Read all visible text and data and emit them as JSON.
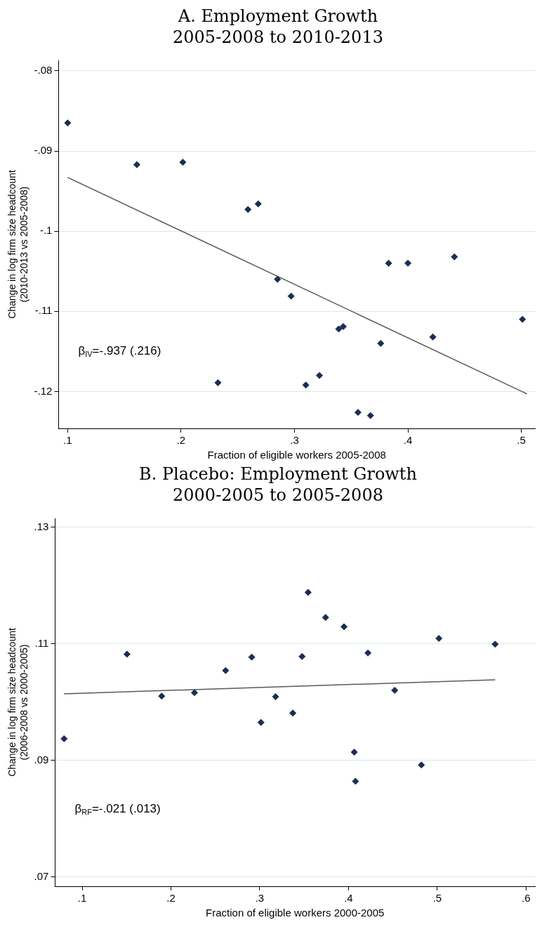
{
  "chart_data": [
    {
      "type": "scatter",
      "title": "A. Employment Growth",
      "subtitle": "2005-2008 to 2010-2013",
      "xlabel": "Fraction of eligible workers 2005-2008",
      "ylabel": "Change in log firm size headcount\n(2010-2013 vs 2005-2008)",
      "annotations": [
        "β$_{IV}$=-.937 (.216)"
      ],
      "grid": "y",
      "legend": false,
      "xlim": [
        0.092,
        0.512
      ],
      "ylim": [
        -0.1246,
        -0.0787
      ],
      "xticks": [
        {
          "value": 0.1,
          "label": ".1"
        },
        {
          "value": 0.2,
          "label": ".2"
        },
        {
          "value": 0.3,
          "label": ".3"
        },
        {
          "value": 0.4,
          "label": ".4"
        },
        {
          "value": 0.5,
          "label": ".5"
        }
      ],
      "yticks": [
        {
          "value": -0.12,
          "label": "-.12"
        },
        {
          "value": -0.11,
          "label": "-.11"
        },
        {
          "value": -0.1,
          "label": "-.1"
        },
        {
          "value": -0.09,
          "label": "-.09"
        },
        {
          "value": -0.08,
          "label": "-.08"
        }
      ],
      "series": [
        {
          "marker": "diamond",
          "color": "#1c2d55",
          "x": [
            0.1,
            0.161,
            0.2015,
            0.2325,
            0.259,
            0.268,
            0.285,
            0.297,
            0.31,
            0.322,
            0.339,
            0.343,
            0.356,
            0.367,
            0.376,
            0.383,
            0.4,
            0.422,
            0.441,
            0.501
          ],
          "values": [
            -0.0865,
            -0.0917,
            -0.0914,
            -0.1189,
            -0.0973,
            -0.0966,
            -0.106,
            -0.1081,
            -0.1192,
            -0.118,
            -0.1122,
            -0.1119,
            -0.1226,
            -0.123,
            -0.114,
            -0.104,
            -0.104,
            -0.1132,
            -0.1032,
            -0.111
          ]
        },
        {
          "type": "line",
          "marker": "none",
          "color": "#5a5a5a",
          "line_style": "solid",
          "x": [
            0.1,
            0.505
          ],
          "values": [
            -0.0933,
            -0.1203
          ]
        }
      ]
    },
    {
      "type": "scatter",
      "title": "B. Placebo: Employment Growth",
      "subtitle": "2000-2005 to 2005-2008",
      "xlabel": "Fraction of eligible workers 2000-2005",
      "ylabel": "Change in log firm size headcount\n(2006-2008 vs 2000-2005)",
      "annotations": [
        "β$_{RF}$=-.021 (.013)"
      ],
      "grid": "y",
      "legend": false,
      "xlim": [
        0.0695,
        0.61
      ],
      "ylim": [
        0.0684,
        0.1315
      ],
      "xticks": [
        {
          "value": 0.1,
          "label": ".1"
        },
        {
          "value": 0.2,
          "label": ".2"
        },
        {
          "value": 0.3,
          "label": ".3"
        },
        {
          "value": 0.4,
          "label": ".4"
        },
        {
          "value": 0.5,
          "label": ".5"
        },
        {
          "value": 0.6,
          "label": ".6"
        }
      ],
      "yticks": [
        {
          "value": 0.07,
          "label": ".07"
        },
        {
          "value": 0.09,
          "label": ".09"
        },
        {
          "value": 0.11,
          "label": ".11"
        },
        {
          "value": 0.13,
          "label": ".13"
        }
      ],
      "series": [
        {
          "marker": "diamond",
          "color": "#1c2d55",
          "x": [
            0.0796,
            0.1505,
            0.1896,
            0.2265,
            0.2616,
            0.291,
            0.3014,
            0.3179,
            0.3373,
            0.3477,
            0.3545,
            0.3742,
            0.395,
            0.4065,
            0.4079,
            0.4219,
            0.452,
            0.4821,
            0.5018,
            0.5652
          ],
          "values": [
            0.0937,
            0.1082,
            0.101,
            0.1016,
            0.1054,
            0.1077,
            0.0965,
            0.1009,
            0.0981,
            0.1078,
            0.1188,
            0.1145,
            0.1129,
            0.0914,
            0.0864,
            0.1084,
            0.102,
            0.0892,
            0.1109,
            0.1099
          ]
        },
        {
          "type": "line",
          "marker": "none",
          "color": "#5a5a5a",
          "line_style": "solid",
          "x": [
            0.0796,
            0.5652
          ],
          "values": [
            0.1014,
            0.1038
          ]
        }
      ]
    }
  ]
}
